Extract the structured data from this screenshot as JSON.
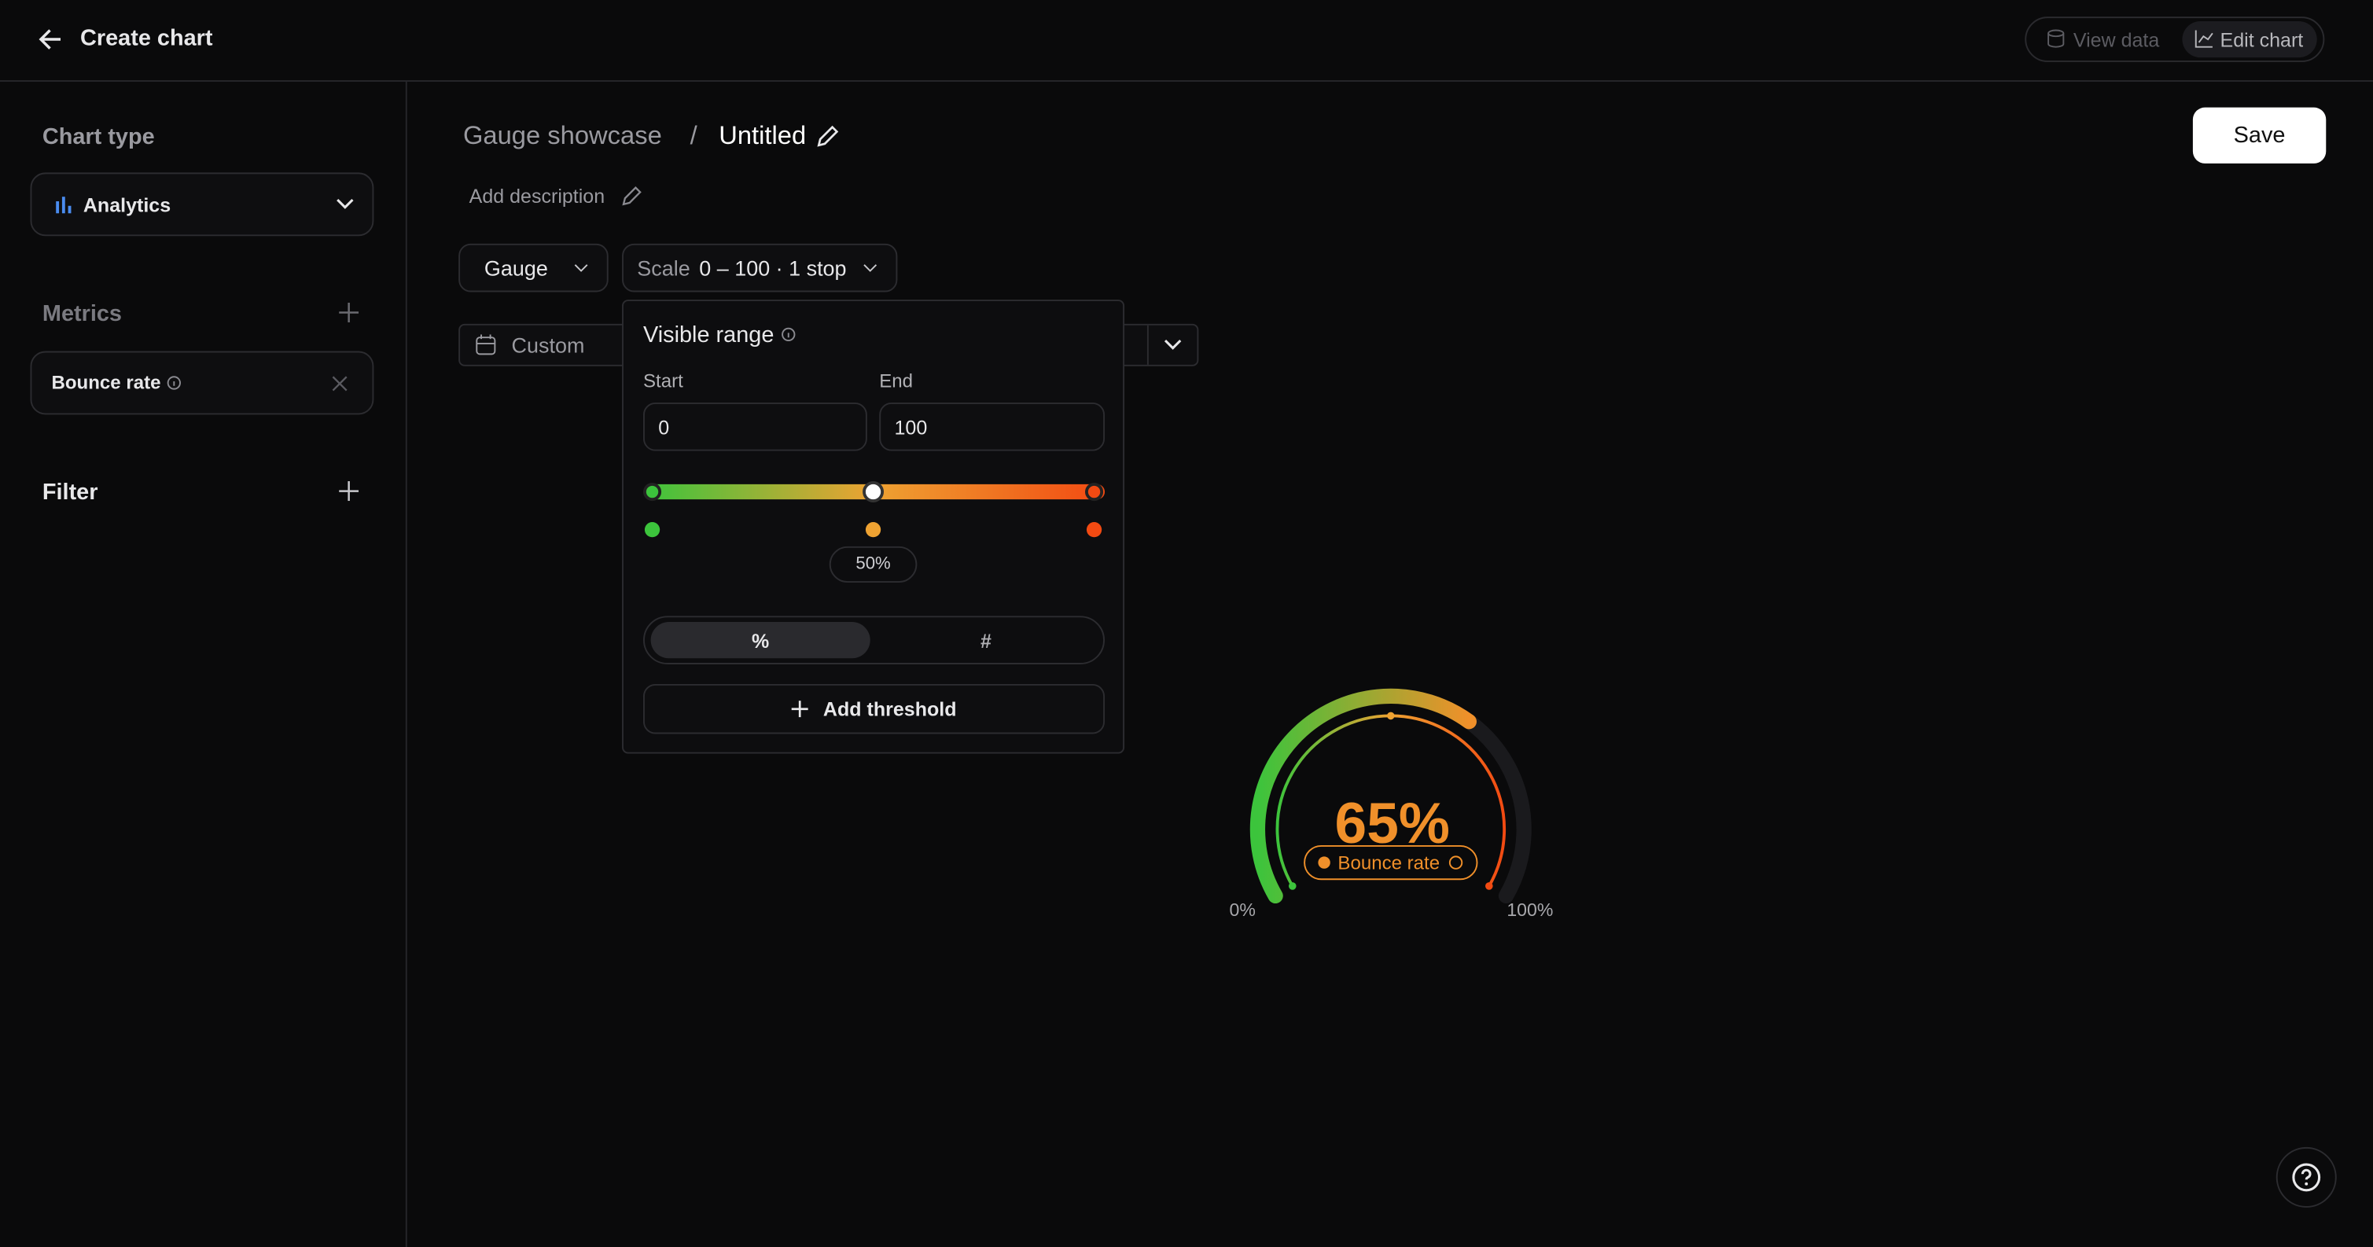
{
  "header": {
    "title": "Create chart",
    "tabs": [
      "View data",
      "Edit chart"
    ]
  },
  "sidebar": {
    "chart_type": {
      "label": "Chart type",
      "value": "Analytics"
    },
    "metrics": {
      "label": "Metrics",
      "items": [
        "Bounce rate"
      ]
    },
    "filter": {
      "label": "Filter"
    }
  },
  "main": {
    "breadcrumb": [
      "Gauge showcase",
      "/",
      "Untitled"
    ],
    "description": "Add description",
    "save": "Save",
    "toolbar": {
      "type": "Gauge",
      "scale_label": "Scale",
      "scale_value": "0 – 100 · 1 stop",
      "date": "Custom"
    }
  },
  "popup": {
    "title": "Visible range",
    "start": {
      "label": "Start",
      "value": "0"
    },
    "end": {
      "label": "End",
      "value": "100"
    },
    "stops": [
      {
        "position": 0,
        "color": "#3cc43c"
      },
      {
        "position": 50,
        "color": "#eea232",
        "label": "50%"
      },
      {
        "position": 100,
        "color": "#f24a12"
      }
    ],
    "modes": [
      "%",
      "#"
    ],
    "add": "Add threshold"
  },
  "gauge": {
    "value": 65,
    "value_label": "65%",
    "min": 0,
    "max": 100,
    "min_label": "0%",
    "max_label": "100%",
    "metric": "Bounce rate",
    "color": "#f0902a"
  }
}
